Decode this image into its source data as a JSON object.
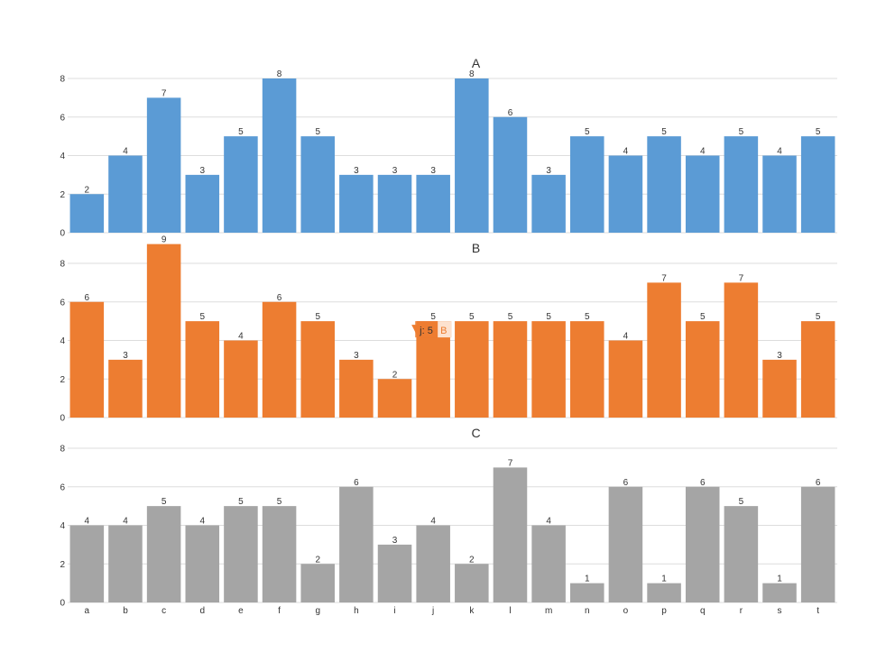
{
  "chart_data": {
    "type": "bar",
    "layout": "stacked-panels",
    "categories": [
      "a",
      "b",
      "c",
      "d",
      "e",
      "f",
      "g",
      "h",
      "i",
      "j",
      "k",
      "l",
      "m",
      "n",
      "o",
      "p",
      "q",
      "r",
      "s",
      "t"
    ],
    "ylim": [
      0,
      8
    ],
    "yticks": [
      0,
      2,
      4,
      6,
      8
    ],
    "grid": true,
    "data_labels": true,
    "shared_x_axis": true,
    "series": [
      {
        "name": "A",
        "color": "#5b9bd5",
        "values": [
          2,
          4,
          7,
          3,
          5,
          8,
          5,
          3,
          3,
          3,
          8,
          6,
          3,
          5,
          4,
          5,
          4,
          5,
          4,
          5
        ]
      },
      {
        "name": "B",
        "color": "#ed7d31",
        "values": [
          6,
          3,
          9,
          5,
          4,
          6,
          5,
          3,
          2,
          5,
          5,
          5,
          5,
          5,
          4,
          7,
          5,
          7,
          3,
          5
        ]
      },
      {
        "name": "C",
        "color": "#a5a5a5",
        "values": [
          4,
          4,
          5,
          4,
          5,
          5,
          2,
          6,
          3,
          4,
          2,
          7,
          4,
          1,
          6,
          1,
          6,
          5,
          1,
          6
        ]
      }
    ],
    "tooltip": {
      "series": "B",
      "category": "j",
      "value": 5,
      "label": "j: 5",
      "series_label": "B"
    }
  }
}
